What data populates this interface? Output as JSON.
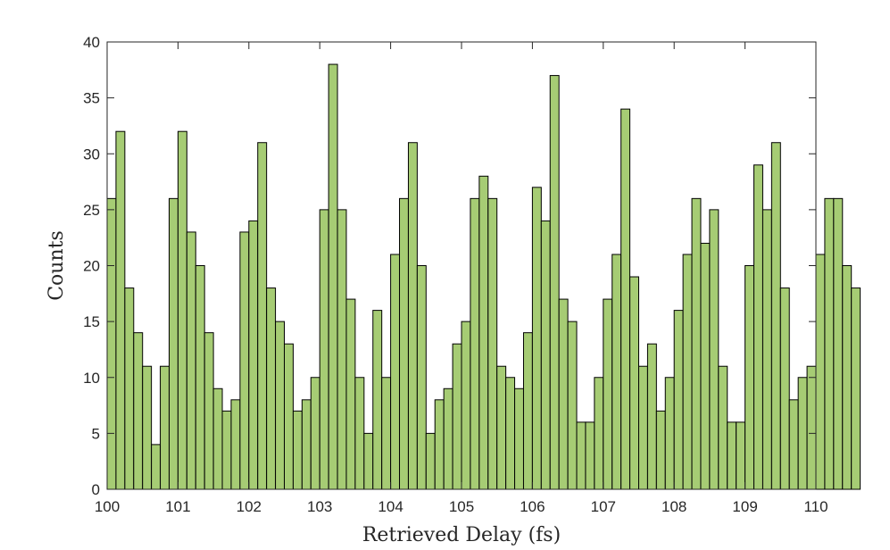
{
  "chart_data": {
    "type": "bar",
    "title": "",
    "xlabel": "Retrieved Delay (fs)",
    "ylabel": "Counts",
    "xlim": [
      100,
      110
    ],
    "ylim": [
      0,
      40
    ],
    "xticks": [
      "100",
      "101",
      "102",
      "103",
      "104",
      "105",
      "106",
      "107",
      "108",
      "109",
      "110"
    ],
    "yticks": [
      "0",
      "5",
      "10",
      "15",
      "20",
      "25",
      "30",
      "35",
      "40"
    ],
    "bin_width": 0.125,
    "bin_start": 100,
    "grid": false,
    "bar_color": "#a6cc74",
    "edge_color": "#000000",
    "values": [
      26,
      32,
      18,
      14,
      11,
      4,
      11,
      26,
      32,
      23,
      20,
      14,
      9,
      7,
      8,
      23,
      24,
      31,
      18,
      15,
      13,
      7,
      8,
      10,
      25,
      38,
      25,
      17,
      10,
      5,
      16,
      10,
      21,
      26,
      31,
      20,
      5,
      8,
      9,
      13,
      15,
      26,
      28,
      26,
      11,
      10,
      9,
      14,
      27,
      24,
      37,
      17,
      15,
      6,
      6,
      10,
      17,
      21,
      34,
      19,
      11,
      13,
      7,
      10,
      16,
      21,
      26,
      22,
      25,
      11,
      6,
      6,
      20,
      29,
      25,
      31,
      18,
      8,
      10,
      11,
      21,
      26,
      26,
      20,
      18
    ]
  }
}
